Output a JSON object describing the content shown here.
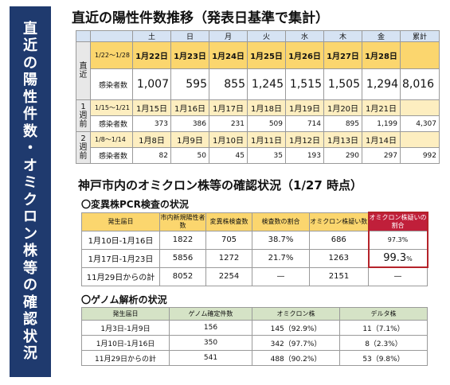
{
  "side_banner": [
    "直",
    "近",
    "の",
    "陽",
    "性",
    "件",
    "数",
    "・",
    "オ",
    "ミ",
    "ク",
    "ロ",
    "ン",
    "株",
    "等",
    "の",
    "確",
    "認",
    "状",
    "況"
  ],
  "section1": {
    "title": "直近の陽性件数推移（発表日基準で集計）",
    "header": [
      "土",
      "日",
      "月",
      "火",
      "水",
      "木",
      "金",
      "累計"
    ],
    "blocks": [
      {
        "label": "直近",
        "range": "1/22～1/28",
        "dates": [
          "1月22日",
          "1月23日",
          "1月24日",
          "1月25日",
          "1月26日",
          "1月27日",
          "1月28日"
        ],
        "row_label": "感染者数",
        "values": [
          "1,007",
          "595",
          "855",
          "1,245",
          "1,515",
          "1,505",
          "1,294"
        ],
        "total": "8,016"
      },
      {
        "label": "1週前",
        "range": "1/15～1/21",
        "dates": [
          "1月15日",
          "1月16日",
          "1月17日",
          "1月18日",
          "1月19日",
          "1月20日",
          "1月21日"
        ],
        "row_label": "感染者数",
        "values": [
          "373",
          "386",
          "231",
          "509",
          "714",
          "895",
          "1,199"
        ],
        "total": "4,307"
      },
      {
        "label": "2週前",
        "range": "1/8～1/14",
        "dates": [
          "1月8日",
          "1月9日",
          "1月10日",
          "1月11日",
          "1月12日",
          "1月13日",
          "1月14日"
        ],
        "row_label": "感染者数",
        "values": [
          "82",
          "50",
          "45",
          "35",
          "193",
          "290",
          "297"
        ],
        "total": "992"
      }
    ]
  },
  "section2": {
    "title": "神戸市内のオミクロン株等の確認状況（1/27 時点）",
    "pcr": {
      "subtitle": "〇変異株PCR検査の状況",
      "headers": [
        "発生届日",
        "市内新規陽性者数",
        "変異株検査数",
        "検査数の割合",
        "オミクロン株疑い数",
        "オミクロン株疑いの割合"
      ],
      "rows": [
        {
          "cells": [
            "1月10日-1月16日",
            "1822",
            "705",
            "38.7%",
            "686"
          ],
          "last": "97.3%"
        },
        {
          "cells": [
            "1月17日-1月23日",
            "5856",
            "1272",
            "21.7%",
            "1263"
          ],
          "last_num": "99.3",
          "last_unit": "%"
        },
        {
          "cells": [
            "11月29日からの計",
            "8052",
            "2254",
            "—",
            "2151"
          ],
          "last": "—"
        }
      ]
    },
    "genome": {
      "subtitle": "〇ゲノム解析の状況",
      "headers": [
        "発生届日",
        "ゲノム確定件数",
        "オミクロン株",
        "デルタ株"
      ],
      "rows": [
        [
          "1月3日-1月9日",
          "156",
          "145（92.9%）",
          "11（7.1%）"
        ],
        [
          "1月10日-1月16日",
          "350",
          "342（97.7%）",
          "8（2.3%）"
        ],
        [
          "11月29日からの計",
          "541",
          "488（90.2%）",
          "53（9.8%）"
        ]
      ]
    }
  },
  "colors": {
    "banner": "#1f3a6e",
    "date_row": "#fbd66e",
    "header_blue": "#d6e3f3",
    "header_green": "#d5e3c6",
    "highlight_red": "#c01f3a"
  }
}
